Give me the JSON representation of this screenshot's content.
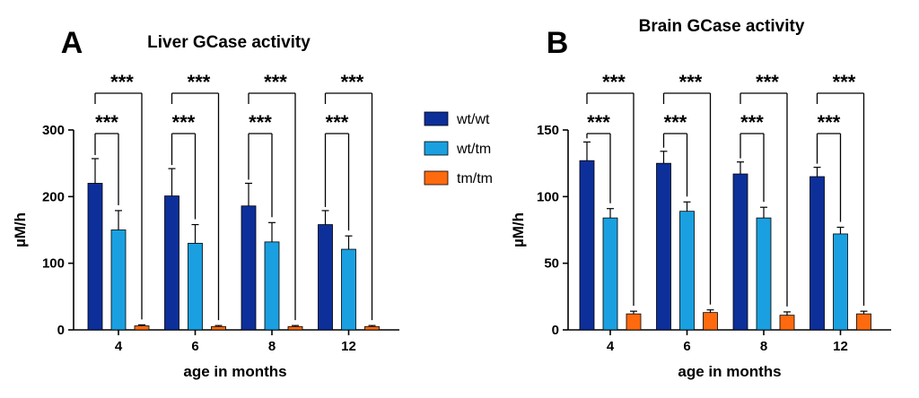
{
  "legend": {
    "items": [
      {
        "label": "wt/wt",
        "color": "#0d2f9a"
      },
      {
        "label": "wt/tm",
        "color": "#1aa0e0"
      },
      {
        "label": "tm/tm",
        "color": "#ff6a0e"
      }
    ]
  },
  "significance_label": "***",
  "chart_data": [
    {
      "panel_label": "A",
      "type": "bar",
      "title": "Liver GCase activity",
      "xlabel": "age in months",
      "ylabel": "µM/h",
      "ylim": [
        0,
        300
      ],
      "yticks": [
        0,
        100,
        200,
        300
      ],
      "categories": [
        "4",
        "6",
        "8",
        "12"
      ],
      "series": [
        {
          "name": "wt/wt",
          "values": [
            220,
            201,
            186,
            158
          ],
          "errors": [
            37,
            41,
            34,
            21
          ]
        },
        {
          "name": "wt/tm",
          "values": [
            150,
            130,
            132,
            121
          ],
          "errors": [
            29,
            28,
            29,
            20
          ]
        },
        {
          "name": "tm/tm",
          "values": [
            6,
            5,
            5,
            5
          ],
          "errors": [
            1.5,
            1.5,
            1.5,
            1.5
          ]
        }
      ],
      "significance": [
        "***",
        "***"
      ]
    },
    {
      "panel_label": "B",
      "type": "bar",
      "title": "Brain GCase activity",
      "xlabel": "age in months",
      "ylabel": "µM/h",
      "ylim": [
        0,
        150
      ],
      "yticks": [
        0,
        50,
        100,
        150
      ],
      "categories": [
        "4",
        "6",
        "8",
        "12"
      ],
      "series": [
        {
          "name": "wt/wt",
          "values": [
            127,
            125,
            117,
            115
          ],
          "errors": [
            14,
            9,
            9,
            7
          ]
        },
        {
          "name": "wt/tm",
          "values": [
            84,
            89,
            84,
            72
          ],
          "errors": [
            7,
            7,
            8,
            5
          ]
        },
        {
          "name": "tm/tm",
          "values": [
            12,
            13,
            11,
            12
          ],
          "errors": [
            2,
            2,
            2.5,
            2
          ]
        }
      ],
      "significance": [
        "***",
        "***"
      ]
    }
  ]
}
